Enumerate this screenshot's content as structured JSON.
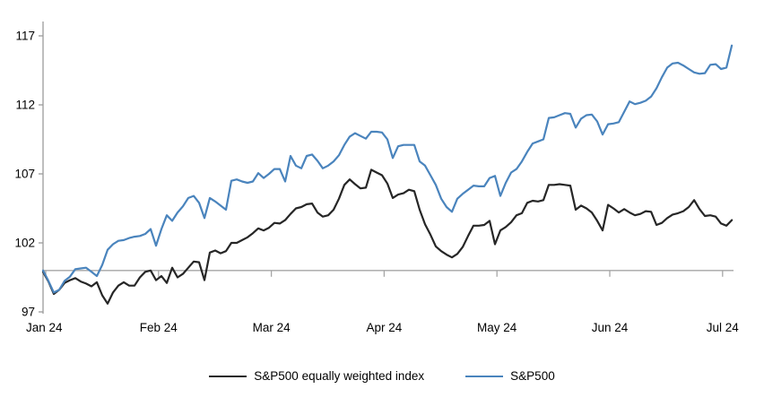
{
  "chart_data": {
    "type": "line",
    "title": "",
    "xlabel": "",
    "ylabel": "",
    "grid": false,
    "legend_position": "bottom-center",
    "baseline_value": 100,
    "baseline_color": "#a6a6a6",
    "axis_color": "#9b9b9b",
    "y_axis": {
      "ticks": [
        97,
        102,
        107,
        112,
        117
      ],
      "range": [
        96.3,
        118.2
      ]
    },
    "x_axis": {
      "tick_labels": [
        "Jan 24",
        "Feb 24",
        "Mar 24",
        "Apr 24",
        "May 24",
        "Jun 24",
        "Jul 24"
      ],
      "tick_positions_months": [
        0,
        1,
        2,
        3,
        4,
        5,
        6
      ]
    },
    "x_start_month": -0.024,
    "x_step_month": 0.0477,
    "series": [
      {
        "name": "S&P500 equally weighted index",
        "color": "#262626",
        "values": [
          99.9,
          99.2,
          98.3,
          98.6,
          99.1,
          99.3,
          99.45,
          99.2,
          99.05,
          98.85,
          99.15,
          98.2,
          97.6,
          98.4,
          98.9,
          99.15,
          98.9,
          98.9,
          99.5,
          99.9,
          100.0,
          99.3,
          99.6,
          99.1,
          100.2,
          99.5,
          99.75,
          100.2,
          100.65,
          100.6,
          99.3,
          101.3,
          101.45,
          101.25,
          101.4,
          102.0,
          102.0,
          102.2,
          102.4,
          102.7,
          103.05,
          102.9,
          103.1,
          103.45,
          103.4,
          103.65,
          104.1,
          104.5,
          104.6,
          104.8,
          104.85,
          104.2,
          103.9,
          104.0,
          104.4,
          105.2,
          106.2,
          106.6,
          106.25,
          105.95,
          106.0,
          107.3,
          107.1,
          106.9,
          106.3,
          105.25,
          105.5,
          105.6,
          105.85,
          105.75,
          104.4,
          103.35,
          102.6,
          101.75,
          101.4,
          101.15,
          100.95,
          101.2,
          101.7,
          102.5,
          103.25,
          103.25,
          103.3,
          103.6,
          101.9,
          102.9,
          103.15,
          103.5,
          104.0,
          104.15,
          104.9,
          105.05,
          105.0,
          105.1,
          106.2,
          106.2,
          106.25,
          106.2,
          106.15,
          104.4,
          104.7,
          104.5,
          104.2,
          103.6,
          102.9,
          104.75,
          104.5,
          104.2,
          104.45,
          104.2,
          104.0,
          104.1,
          104.3,
          104.25,
          103.3,
          103.45,
          103.8,
          104.05,
          104.15,
          104.3,
          104.6,
          105.1,
          104.45,
          103.95,
          104.0,
          103.9,
          103.4,
          103.25,
          103.65
        ]
      },
      {
        "name": "S&P500",
        "color": "#4a84bd",
        "values": [
          100.0,
          99.25,
          98.4,
          98.6,
          99.25,
          99.55,
          100.1,
          100.15,
          100.2,
          99.9,
          99.6,
          100.4,
          101.5,
          101.9,
          102.15,
          102.2,
          102.35,
          102.45,
          102.5,
          102.65,
          103.0,
          101.8,
          103.0,
          104.0,
          103.6,
          104.2,
          104.65,
          105.25,
          105.4,
          104.9,
          103.8,
          105.25,
          105.0,
          104.7,
          104.4,
          106.5,
          106.6,
          106.45,
          106.35,
          106.45,
          107.05,
          106.7,
          107.0,
          107.35,
          107.35,
          106.45,
          108.3,
          107.6,
          107.4,
          108.3,
          108.4,
          107.95,
          107.4,
          107.6,
          107.9,
          108.35,
          109.1,
          109.7,
          109.95,
          109.75,
          109.55,
          110.05,
          110.05,
          110.0,
          109.5,
          108.15,
          109.0,
          109.1,
          109.1,
          109.1,
          107.9,
          107.6,
          106.9,
          106.2,
          105.2,
          104.6,
          104.25,
          105.2,
          105.55,
          105.85,
          106.15,
          106.1,
          106.1,
          106.7,
          106.85,
          105.4,
          106.35,
          107.1,
          107.35,
          107.9,
          108.6,
          109.2,
          109.35,
          109.5,
          111.05,
          111.1,
          111.25,
          111.4,
          111.35,
          110.35,
          111.0,
          111.25,
          111.3,
          110.8,
          109.85,
          110.6,
          110.65,
          110.75,
          111.5,
          112.25,
          112.05,
          112.15,
          112.3,
          112.6,
          113.2,
          114.0,
          114.7,
          115.0,
          115.05,
          114.85,
          114.6,
          114.35,
          114.25,
          114.3,
          114.9,
          114.95,
          114.6,
          114.7,
          116.3
        ]
      }
    ]
  }
}
